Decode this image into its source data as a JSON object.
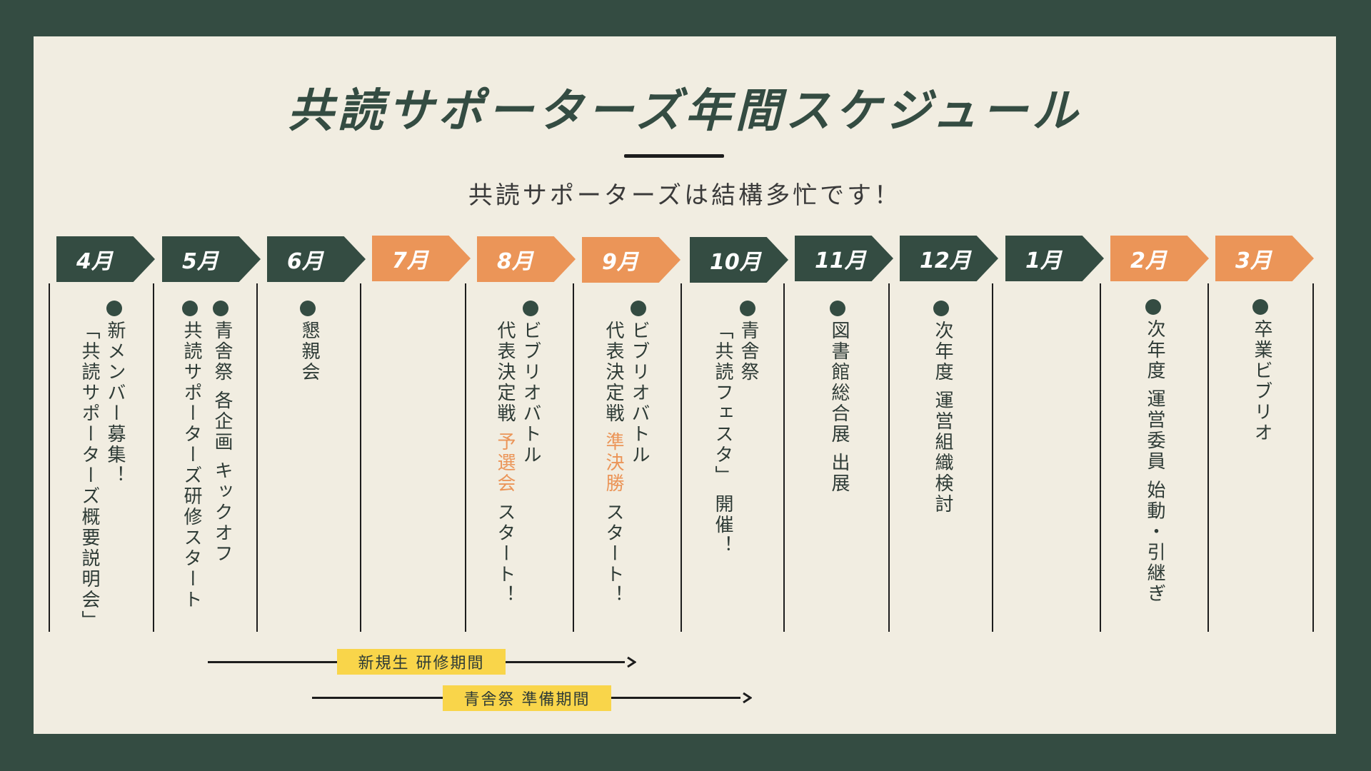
{
  "title": "共読サポーターズ年間スケジュール",
  "subtitle": "共読サポーターズは結構多忙です！",
  "months": [
    {
      "label": "4月",
      "color": "#344c42"
    },
    {
      "label": "5月",
      "color": "#344c42"
    },
    {
      "label": "6月",
      "color": "#344c42"
    },
    {
      "label": "7月",
      "color": "#eb9558"
    },
    {
      "label": "8月",
      "color": "#eb9558"
    },
    {
      "label": "9月",
      "color": "#eb9558"
    },
    {
      "label": "10月",
      "color": "#344c42"
    },
    {
      "label": "11月",
      "color": "#344c42"
    },
    {
      "label": "12月",
      "color": "#344c42"
    },
    {
      "label": "1月",
      "color": "#344c42"
    },
    {
      "label": "2月",
      "color": "#eb9558"
    },
    {
      "label": "3月",
      "color": "#eb9558"
    }
  ],
  "events": {
    "apr": {
      "line1": "新メンバー募集！",
      "line2": "「共読サポーターズ概要説明会」"
    },
    "may_a": {
      "line1": "共読サポーターズ研修スタート"
    },
    "may_b": {
      "line1": "青舎祭 各企画 キックオフ"
    },
    "jun": {
      "line1": "懇親会"
    },
    "aug": {
      "line1": "ビブリオバトル",
      "line2a": "代表決定戦 ",
      "line2b": "予選会",
      "line2c": " スタート！"
    },
    "sep": {
      "line1": "ビブリオバトル",
      "line2a": "代表決定戦 ",
      "line2b": "準決勝",
      "line2c": " スタート！"
    },
    "oct": {
      "line1": "青舎祭",
      "line2": "「共読フェスタ」 開催！"
    },
    "nov": {
      "line1": "図書館総合展 出展"
    },
    "dec": {
      "line1": "次年度 運営組織検討"
    },
    "feb": {
      "line1": "次年度 運営委員 始動・引継ぎ"
    },
    "mar": {
      "line1": "卒業ビブリオ"
    }
  },
  "periods": {
    "training": "新規生 研修期間",
    "festival": "青舎祭 準備期間"
  },
  "colors": {
    "background": "#344c42",
    "canvas": "#f1ede1",
    "accent": "#eb9558",
    "badge": "#f9d54a"
  }
}
